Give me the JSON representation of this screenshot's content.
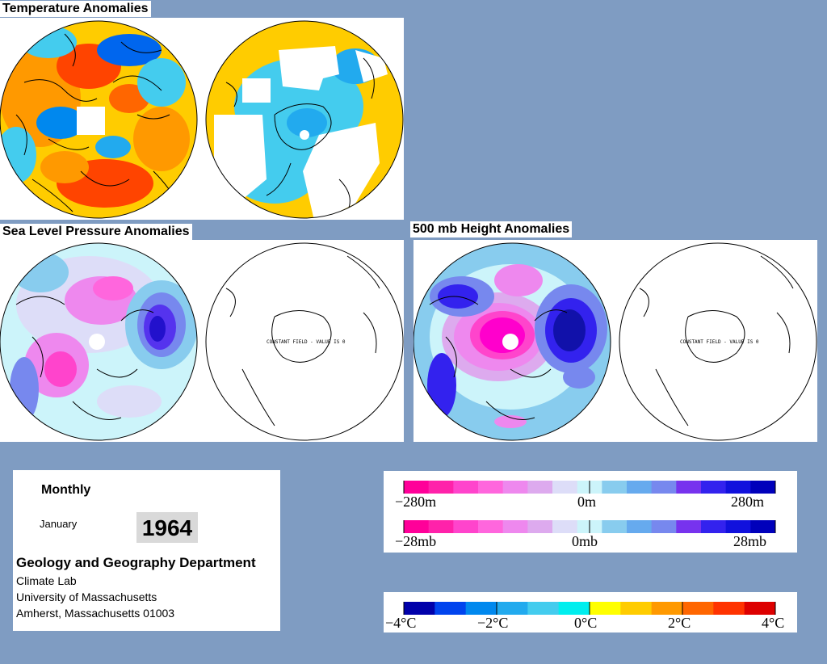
{
  "titles": {
    "temperature": "Temperature Anomalies",
    "slp": "Sea Level Pressure Anomalies",
    "height500": "500 mb Height Anomalies"
  },
  "maps": {
    "constant_field_label": "CONSTANT FIELD - VALUE IS 0"
  },
  "info": {
    "frequency": "Monthly",
    "month": "January",
    "year": "1964",
    "department": "Geology and Geography Department",
    "lab": "Climate Lab",
    "university": "University of Massachusetts",
    "address": "Amherst, Massachusetts 01003"
  },
  "legends": {
    "height": {
      "min": "−280m",
      "mid": "0m",
      "max": "280m"
    },
    "pressure": {
      "min": "−28mb",
      "mid": "0mb",
      "max": "28mb"
    },
    "temperature": {
      "t1": "−4°C",
      "t2": "−2°C",
      "t3": "0°C",
      "t4": "2°C",
      "t5": "4°C"
    }
  },
  "colors": {
    "background": "#7f9cc2",
    "anomaly_scale": [
      "#ff0099",
      "#ff22aa",
      "#ff44cc",
      "#ff66dd",
      "#ee88ee",
      "#ddaaee",
      "#ddddf8",
      "#ccf4fa",
      "#88ccee",
      "#66aaee",
      "#7788ee",
      "#7733ee",
      "#3322ee",
      "#1111dd",
      "#0000bb"
    ],
    "temperature_scale": [
      "#0000aa",
      "#0044ee",
      "#0088ee",
      "#22aaee",
      "#44ccee",
      "#00eeee",
      "#ffff00",
      "#ffcc00",
      "#ff9900",
      "#ff6600",
      "#ff3300",
      "#dd0000"
    ]
  }
}
